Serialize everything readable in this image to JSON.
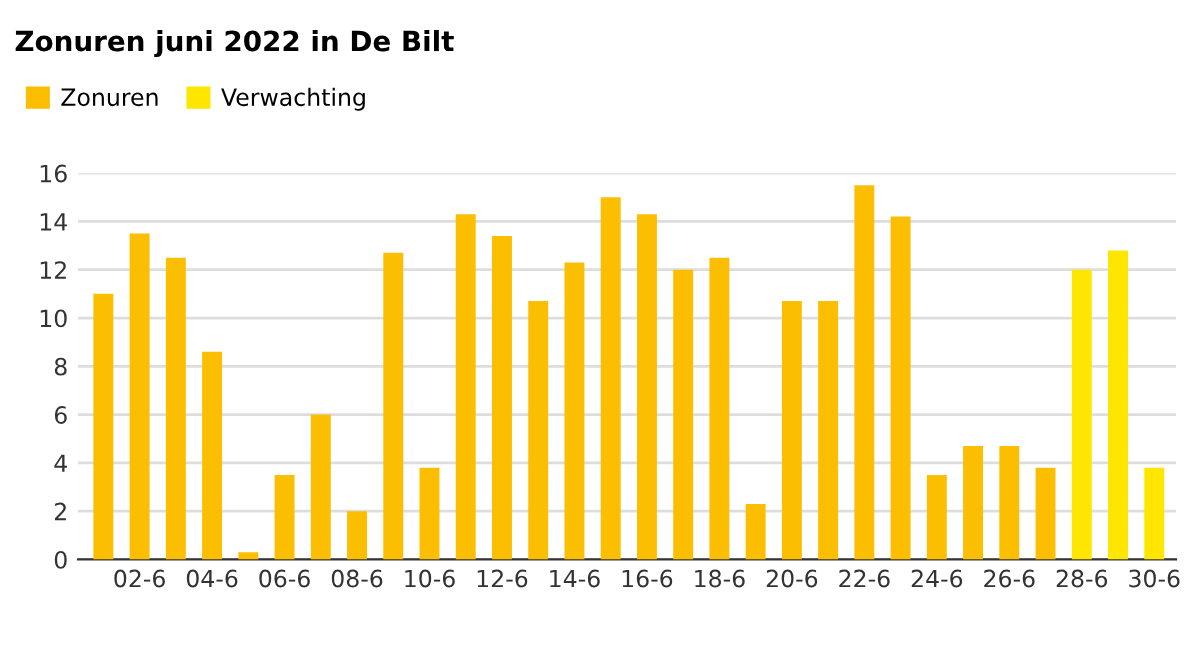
{
  "chart_data": {
    "type": "bar",
    "title": "Zonuren juni 2022 in De Bilt",
    "categories": [
      null,
      "02-6",
      null,
      "04-6",
      null,
      "06-6",
      null,
      "08-6",
      null,
      "10-6",
      null,
      "12-6",
      null,
      "14-6",
      null,
      "16-6",
      null,
      "18-6",
      null,
      "20-6",
      null,
      "22-6",
      null,
      "24-6",
      null,
      "26-6",
      null,
      "28-6",
      null,
      "30-6"
    ],
    "series": [
      {
        "name": "Zonuren",
        "color": "#fbbe00",
        "values": [
          11,
          13.5,
          12.5,
          8.6,
          0.3,
          3.5,
          6,
          2,
          12.7,
          3.8,
          14.3,
          13.4,
          10.7,
          12.3,
          15,
          14.3,
          12,
          12.5,
          2.3,
          10.7,
          10.7,
          15.5,
          14.2,
          3.5,
          4.7,
          4.7,
          3.8,
          null,
          null,
          null
        ]
      },
      {
        "name": "Verwachting",
        "color": "#ffe600",
        "values": [
          null,
          null,
          null,
          null,
          null,
          null,
          null,
          null,
          null,
          null,
          null,
          null,
          null,
          null,
          null,
          null,
          null,
          null,
          null,
          null,
          null,
          null,
          null,
          null,
          null,
          null,
          null,
          12,
          12.8,
          3.8
        ]
      }
    ],
    "ylim": [
      0,
      16
    ],
    "yticks": [
      0,
      2,
      4,
      6,
      8,
      10,
      12,
      14,
      16
    ],
    "grid": "y",
    "legend": "top left"
  }
}
